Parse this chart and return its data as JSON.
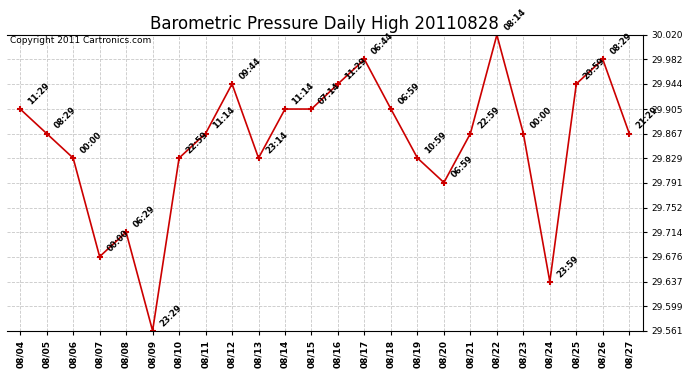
{
  "title": "Barometric Pressure Daily High 20110828",
  "copyright": "Copyright 2011 Cartronics.com",
  "x_labels": [
    "08/04",
    "08/05",
    "08/06",
    "08/07",
    "08/08",
    "08/09",
    "08/10",
    "08/11",
    "08/12",
    "08/13",
    "08/14",
    "08/15",
    "08/16",
    "08/17",
    "08/18",
    "08/19",
    "08/20",
    "08/21",
    "08/22",
    "08/23",
    "08/24",
    "08/25",
    "08/26",
    "08/27"
  ],
  "y_values": [
    29.905,
    29.867,
    29.829,
    29.676,
    29.714,
    29.561,
    29.829,
    29.867,
    29.944,
    29.829,
    29.905,
    29.905,
    29.944,
    29.982,
    29.905,
    29.829,
    29.791,
    29.867,
    30.02,
    29.867,
    29.637,
    29.944,
    29.982,
    29.867
  ],
  "time_labels": [
    "11:29",
    "08:29",
    "00:00",
    "00:00",
    "06:29",
    "23:29",
    "22:59",
    "11:14",
    "09:44",
    "23:14",
    "11:14",
    "07:14",
    "11:29",
    "06:44",
    "06:59",
    "10:59",
    "06:59",
    "22:59",
    "08:14",
    "00:00",
    "23:59",
    "20:59",
    "08:29",
    "21:29"
  ],
  "ylim_min": 29.561,
  "ylim_max": 30.02,
  "yticks": [
    29.561,
    29.599,
    29.637,
    29.676,
    29.714,
    29.752,
    29.791,
    29.829,
    29.867,
    29.905,
    29.944,
    29.982,
    30.02
  ],
  "line_color": "#cc0000",
  "bg_color": "#ffffff",
  "grid_color": "#c8c8c8",
  "title_fontsize": 12,
  "copyright_fontsize": 6.5,
  "annotation_fontsize": 6,
  "tick_fontsize": 6.5
}
